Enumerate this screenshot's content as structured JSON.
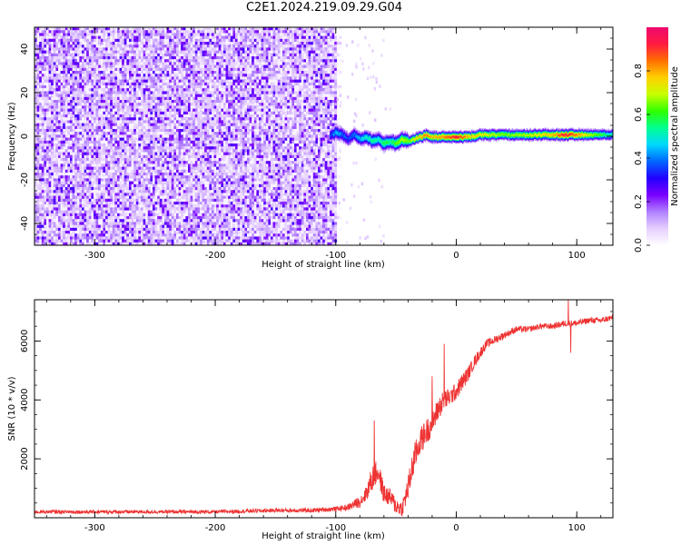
{
  "title": "C2E1.2024.219.09.29.G04",
  "chart_data": [
    {
      "type": "heatmap",
      "title": "",
      "xlabel": "Height of straight line (km)",
      "ylabel": "Frequency (Hz)",
      "xlim": [
        -350,
        130
      ],
      "ylim": [
        -50,
        50
      ],
      "xticks": [
        -300,
        -200,
        -100,
        0,
        100
      ],
      "yticks": [
        -40,
        -20,
        0,
        20,
        40
      ],
      "colorbar": {
        "label": "Normalized spectral amplitude",
        "range": [
          0,
          1
        ],
        "ticks": [
          "0.0",
          "0.2",
          "0.4",
          "0.6",
          "0.8"
        ],
        "tick_values": [
          0,
          0.2,
          0.4,
          0.6,
          0.8
        ],
        "colormap": [
          "#ffffff",
          "#e6cfff",
          "#b080ff",
          "#7a00ff",
          "#2200ff",
          "#0066ff",
          "#00d8ff",
          "#00ff90",
          "#30ff00",
          "#c8ff00",
          "#ffd000",
          "#ff7000",
          "#ff1a40",
          "#ee0a6e"
        ]
      },
      "noise_region": {
        "x_range": [
          -350,
          -100
        ],
        "freq_range": [
          -50,
          50
        ],
        "amplitude_range": [
          0.05,
          0.3
        ]
      },
      "signal_ridge": {
        "x": [
          -105,
          -100,
          -95,
          -90,
          -85,
          -80,
          -75,
          -70,
          -65,
          -60,
          -55,
          -50,
          -45,
          -40,
          -35,
          -30,
          -25,
          -20,
          -10,
          0,
          10,
          20,
          40,
          60,
          80,
          90,
          100,
          110,
          120,
          130
        ],
        "freq": [
          1,
          2,
          1,
          -1,
          1,
          -1,
          0,
          -2,
          -1,
          -3,
          -2,
          -3,
          -1,
          -2,
          -1,
          0,
          1,
          0,
          0,
          0,
          0,
          1,
          1,
          1,
          1,
          1,
          1,
          1,
          1,
          1
        ],
        "amplitude": [
          0.35,
          0.45,
          0.4,
          0.35,
          0.4,
          0.45,
          0.5,
          0.55,
          0.5,
          0.6,
          0.55,
          0.65,
          0.7,
          0.65,
          0.75,
          0.8,
          0.85,
          0.8,
          0.85,
          0.95,
          0.8,
          0.75,
          0.65,
          0.7,
          0.8,
          0.95,
          0.85,
          0.7,
          0.6,
          0.5
        ]
      }
    },
    {
      "type": "line",
      "title": "",
      "xlabel": "Height of straight line (km)",
      "ylabel": "SNR (10 * v/v)",
      "xlim": [
        -350,
        130
      ],
      "ylim": [
        0,
        7400
      ],
      "xticks": [
        -300,
        -200,
        -100,
        0,
        100
      ],
      "yticks": [
        2000,
        4000,
        6000
      ],
      "line_color": "#ee3333",
      "x": [
        -350,
        -300,
        -250,
        -200,
        -150,
        -120,
        -100,
        -90,
        -80,
        -75,
        -70,
        -65,
        -60,
        -55,
        -50,
        -45,
        -40,
        -35,
        -30,
        -25,
        -20,
        -15,
        -10,
        -5,
        0,
        5,
        10,
        15,
        20,
        25,
        30,
        35,
        40,
        50,
        60,
        70,
        80,
        90,
        100,
        110,
        120,
        130
      ],
      "y": [
        200,
        200,
        200,
        200,
        250,
        250,
        300,
        350,
        550,
        800,
        1300,
        1600,
        800,
        700,
        400,
        300,
        1000,
        2000,
        2600,
        2900,
        3200,
        3700,
        4000,
        4100,
        4300,
        4600,
        4900,
        5300,
        5600,
        5900,
        6000,
        6100,
        6200,
        6400,
        6400,
        6500,
        6500,
        6600,
        6600,
        6700,
        6700,
        6800
      ],
      "noise_amplitude": [
        60,
        60,
        60,
        60,
        70,
        70,
        80,
        100,
        200,
        250,
        450,
        400,
        350,
        300,
        300,
        250,
        450,
        500,
        450,
        450,
        400,
        400,
        350,
        300,
        300,
        300,
        250,
        200,
        180,
        150,
        140,
        130,
        120,
        110,
        100,
        100,
        100,
        110,
        110,
        100,
        100,
        100
      ],
      "spikes": [
        {
          "x": -68,
          "y": 3300
        },
        {
          "x": -10,
          "y": 5900
        },
        {
          "x": -36,
          "y": 1500
        },
        {
          "x": -20,
          "y": 4800
        },
        {
          "x": 93,
          "y": 7400
        },
        {
          "x": 95,
          "y": 5600
        }
      ]
    }
  ]
}
